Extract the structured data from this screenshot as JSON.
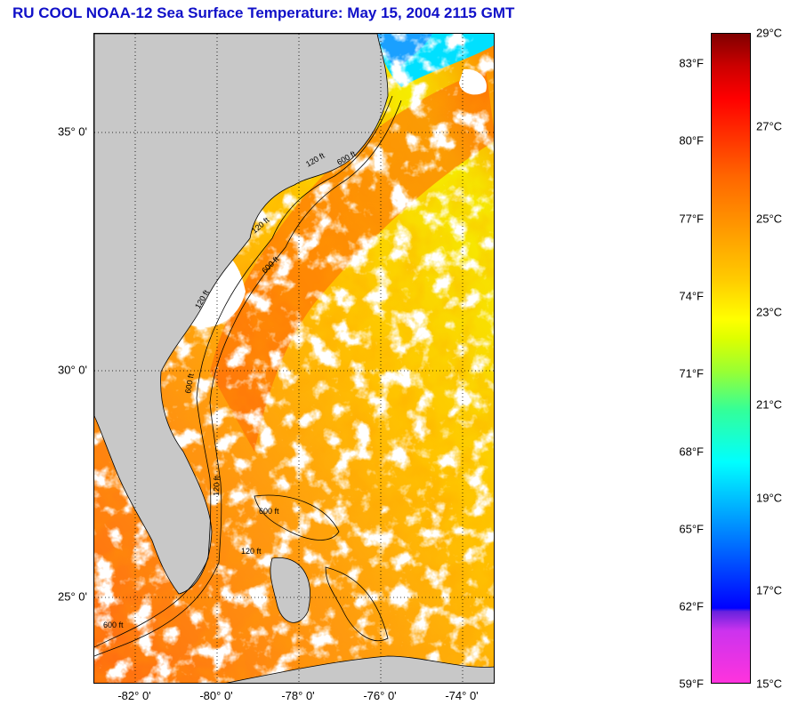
{
  "title": "RU COOL  NOAA-12  Sea Surface Temperature:  May 15, 2004 2115 GMT",
  "lat_labels": [
    "35° 0'",
    "30° 0'",
    "25° 0'"
  ],
  "lon_labels": [
    "-82° 0'",
    "-80° 0'",
    "-78° 0'",
    "-76° 0'",
    "-74° 0'"
  ],
  "colorbar": {
    "fahrenheit": [
      "83°F",
      "80°F",
      "77°F",
      "74°F",
      "71°F",
      "68°F",
      "65°F",
      "62°F",
      "59°F"
    ],
    "celsius": [
      "29°C",
      "27°C",
      "25°C",
      "23°C",
      "21°C",
      "19°C",
      "17°C",
      "15°C"
    ]
  },
  "isobath_labels": [
    "120 ft",
    "600 ft",
    "120 ft",
    "600 ft",
    "120 ft",
    "600 ft",
    "120 ft",
    "600 ft",
    "120 ft",
    "600 ft"
  ],
  "colors": {
    "land": "#c8c8c8",
    "cloud": "#ffffff",
    "title": "#1010c8",
    "warm": "#ff7a10",
    "mid": "#ffc000",
    "cool": "#f5ee00"
  }
}
